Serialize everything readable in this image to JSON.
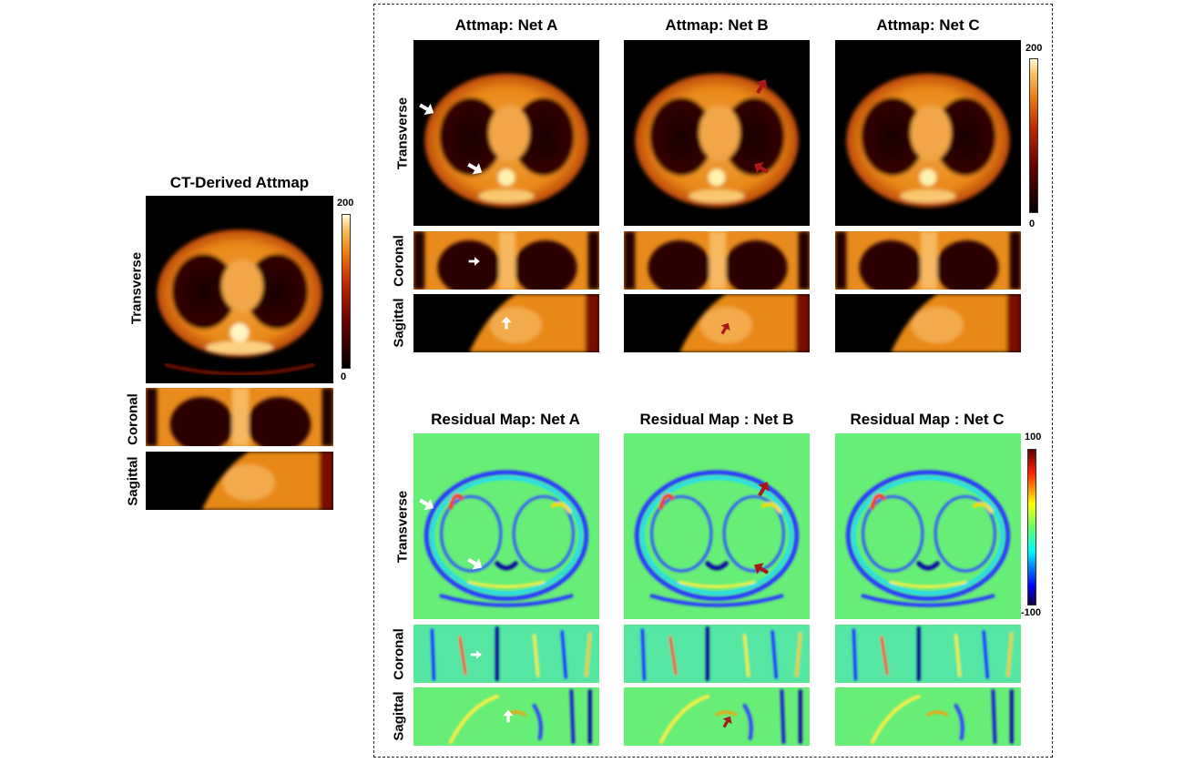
{
  "ct_section": {
    "title": "CT-Derived Attmap",
    "row_labels": [
      "Transverse",
      "Coronal",
      "Sagittal"
    ],
    "colorbar": {
      "max": "200",
      "min": "0"
    }
  },
  "attmap_section": {
    "titles": [
      "Attmap: Net A",
      "Attmap: Net B",
      "Attmap: Net C"
    ],
    "row_labels": [
      "Transverse",
      "Coronal",
      "Sagittal"
    ],
    "colorbar": {
      "max": "200",
      "min": "0"
    }
  },
  "residual_section": {
    "titles": [
      "Residual Map: Net A",
      "Residual Map : Net B",
      "Residual Map : Net C"
    ],
    "row_labels": [
      "Transverse",
      "Coronal",
      "Sagittal"
    ],
    "colorbar": {
      "max": "100",
      "min": "-100"
    }
  },
  "colors": {
    "hot_colormap": [
      "#000000",
      "#5a0000",
      "#b42000",
      "#e66a00",
      "#f5a640",
      "#fff8c8"
    ],
    "jet_colormap": [
      "#5a0000",
      "#ff0000",
      "#ffff00",
      "#66ff66",
      "#00ffff",
      "#0000ff",
      "#000060"
    ],
    "residual_background": "#66ee77",
    "arrow_white": "#ffffff",
    "arrow_red": "#a81818"
  }
}
